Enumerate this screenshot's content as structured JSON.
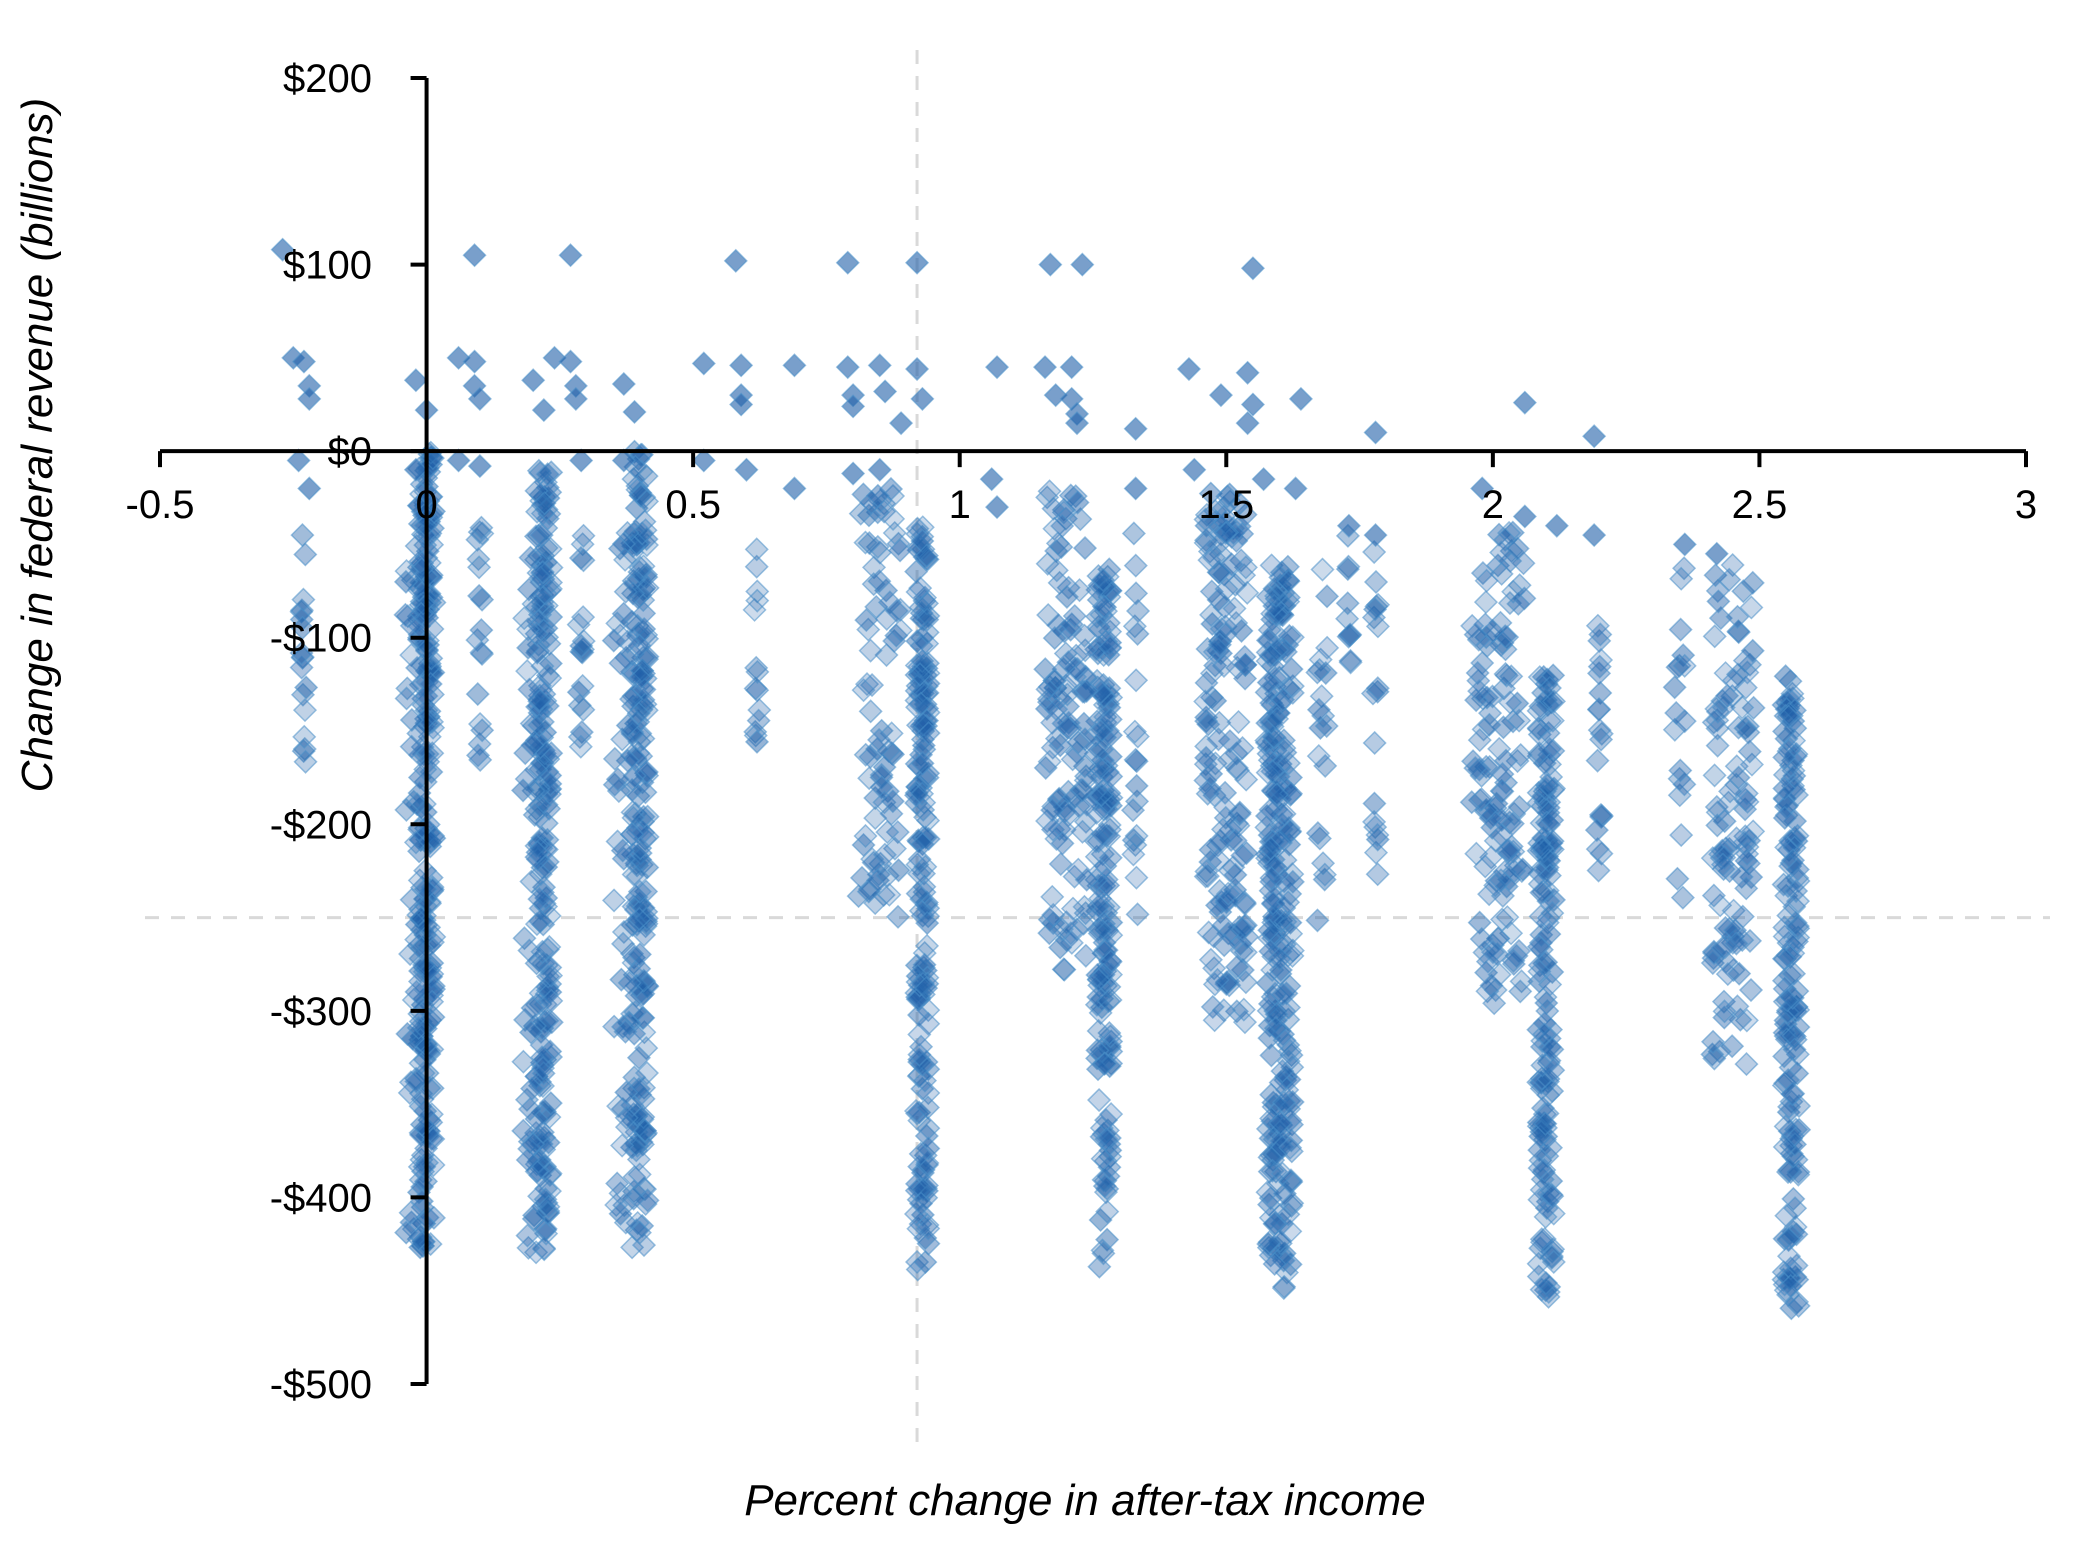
{
  "chart_data": {
    "type": "scatter",
    "xlabel": "Percent change in after-tax income",
    "ylabel": "Change in federal revenue (billions)",
    "xlim": [
      -0.5,
      3
    ],
    "ylim": [
      -500,
      200
    ],
    "x_ticks": [
      -0.5,
      0,
      0.5,
      1,
      1.5,
      2,
      2.5,
      3
    ],
    "x_tick_labels": [
      "-0.5",
      "0",
      "0.5",
      "1",
      "1.5",
      "2",
      "2.5",
      "3"
    ],
    "y_ticks": [
      200,
      100,
      0,
      -100,
      -200,
      -300,
      -400,
      -500
    ],
    "y_tick_labels": [
      "$200",
      "$100",
      "$0",
      "-$100",
      "-$200",
      "-$300",
      "-$400",
      "-$500"
    ],
    "grid": false,
    "legend": "none",
    "reference_lines": {
      "x": 0.92,
      "y": -250
    },
    "marker": "diamond",
    "colors": {
      "marker_fill": "#1f5fa8",
      "marker_stroke": "#4a90c8",
      "axis": "#000000",
      "reference_line": "#d9d9d9"
    },
    "series": [
      {
        "points": [
          [
            -0.27,
            108
          ],
          [
            0.09,
            105
          ],
          [
            0.27,
            105
          ],
          [
            0.58,
            102
          ],
          [
            0.79,
            101
          ],
          [
            0.92,
            101
          ],
          [
            1.17,
            100
          ],
          [
            1.23,
            100
          ],
          [
            1.55,
            98
          ],
          [
            -0.25,
            50
          ],
          [
            -0.23,
            48
          ],
          [
            -0.22,
            35
          ],
          [
            -0.22,
            28
          ],
          [
            -0.02,
            38
          ],
          [
            0,
            22
          ],
          [
            0.06,
            50
          ],
          [
            0.09,
            48
          ],
          [
            0.09,
            35
          ],
          [
            0.1,
            28
          ],
          [
            0.2,
            38
          ],
          [
            0.22,
            22
          ],
          [
            0.24,
            50
          ],
          [
            0.27,
            48
          ],
          [
            0.28,
            35
          ],
          [
            0.28,
            28
          ],
          [
            0.37,
            36
          ],
          [
            0.39,
            21
          ],
          [
            0.52,
            47
          ],
          [
            0.59,
            46
          ],
          [
            0.59,
            30
          ],
          [
            0.59,
            25
          ],
          [
            0.69,
            46
          ],
          [
            0.79,
            45
          ],
          [
            0.8,
            30
          ],
          [
            0.8,
            24
          ],
          [
            0.85,
            46
          ],
          [
            0.86,
            32
          ],
          [
            0.89,
            15
          ],
          [
            0.92,
            44
          ],
          [
            0.93,
            28
          ],
          [
            1.07,
            45
          ],
          [
            1.16,
            45
          ],
          [
            1.18,
            30
          ],
          [
            1.21,
            45
          ],
          [
            1.21,
            28
          ],
          [
            1.22,
            20
          ],
          [
            1.22,
            15
          ],
          [
            1.43,
            44
          ],
          [
            1.49,
            30
          ],
          [
            1.54,
            42
          ],
          [
            1.55,
            25
          ],
          [
            1.54,
            15
          ],
          [
            1.64,
            28
          ],
          [
            1.78,
            10
          ],
          [
            2.06,
            26
          ],
          [
            2.19,
            8
          ],
          [
            1.33,
            12
          ],
          [
            -0.24,
            -5
          ],
          [
            -0.22,
            -20
          ],
          [
            -0.02,
            -10
          ],
          [
            0.06,
            -5
          ],
          [
            0.1,
            -8
          ],
          [
            0.29,
            -5
          ],
          [
            0.37,
            -5
          ],
          [
            0.52,
            -5
          ],
          [
            0.6,
            -10
          ],
          [
            0.69,
            -20
          ],
          [
            0.8,
            -12
          ],
          [
            0.85,
            -10
          ],
          [
            1.06,
            -15
          ],
          [
            1.07,
            -30
          ],
          [
            1.33,
            -20
          ],
          [
            1.44,
            -10
          ],
          [
            1.57,
            -15
          ],
          [
            1.63,
            -20
          ],
          [
            1.73,
            -40
          ],
          [
            1.78,
            -45
          ],
          [
            1.98,
            -20
          ],
          [
            2.06,
            -35
          ],
          [
            2.12,
            -40
          ],
          [
            2.19,
            -45
          ],
          [
            2.36,
            -50
          ],
          [
            2.42,
            -55
          ]
        ]
      }
    ],
    "clusters": [
      {
        "x": 0.0,
        "y_min": -430,
        "y_max": 0,
        "count": 240,
        "spread": 0.015
      },
      {
        "x": 0.22,
        "y_min": -430,
        "y_max": 0,
        "count": 200,
        "spread": 0.015
      },
      {
        "x": 0.4,
        "y_min": -430,
        "y_max": 0,
        "count": 200,
        "spread": 0.015
      },
      {
        "x": 0.93,
        "y_min": -440,
        "y_max": -40,
        "count": 180,
        "spread": 0.012
      },
      {
        "x": 1.27,
        "y_min": -440,
        "y_max": -60,
        "count": 180,
        "spread": 0.015
      },
      {
        "x": 1.6,
        "y_min": -450,
        "y_max": -60,
        "count": 260,
        "spread": 0.025
      },
      {
        "x": 2.1,
        "y_min": -455,
        "y_max": -120,
        "count": 160,
        "spread": 0.015
      },
      {
        "x": 2.56,
        "y_min": -460,
        "y_max": -120,
        "count": 160,
        "spread": 0.015
      },
      {
        "x": -0.02,
        "y_min": -430,
        "y_max": -30,
        "count": 60,
        "spread": 0.02
      },
      {
        "x": 0.2,
        "y_min": -430,
        "y_max": -40,
        "count": 50,
        "spread": 0.02
      },
      {
        "x": 0.37,
        "y_min": -420,
        "y_max": -40,
        "count": 50,
        "spread": 0.02
      },
      {
        "x": 0.85,
        "y_min": -250,
        "y_max": -20,
        "count": 80,
        "spread": 0.04
      },
      {
        "x": 1.2,
        "y_min": -280,
        "y_max": -20,
        "count": 120,
        "spread": 0.04
      },
      {
        "x": 1.5,
        "y_min": -310,
        "y_max": -20,
        "count": 160,
        "spread": 0.04
      },
      {
        "x": 2.02,
        "y_min": -300,
        "y_max": -40,
        "count": 110,
        "spread": 0.04
      },
      {
        "x": 2.45,
        "y_min": -330,
        "y_max": -60,
        "count": 110,
        "spread": 0.04
      },
      {
        "x": -0.23,
        "y_min": -170,
        "y_max": -40,
        "count": 18,
        "spread": 0.005
      },
      {
        "x": 0.1,
        "y_min": -170,
        "y_max": -40,
        "count": 18,
        "spread": 0.005
      },
      {
        "x": 0.29,
        "y_min": -170,
        "y_max": -40,
        "count": 18,
        "spread": 0.005
      },
      {
        "x": 0.62,
        "y_min": -170,
        "y_max": -50,
        "count": 14,
        "spread": 0.005
      },
      {
        "x": 1.33,
        "y_min": -250,
        "y_max": -40,
        "count": 20,
        "spread": 0.005
      },
      {
        "x": 1.73,
        "y_min": -120,
        "y_max": -30,
        "count": 10,
        "spread": 0.005
      },
      {
        "x": 1.78,
        "y_min": -250,
        "y_max": -50,
        "count": 18,
        "spread": 0.005
      },
      {
        "x": 1.97,
        "y_min": -270,
        "y_max": -60,
        "count": 18,
        "spread": 0.01
      },
      {
        "x": 2.2,
        "y_min": -250,
        "y_max": -50,
        "count": 20,
        "spread": 0.005
      },
      {
        "x": 2.35,
        "y_min": -270,
        "y_max": -60,
        "count": 18,
        "spread": 0.01
      },
      {
        "x": 1.68,
        "y_min": -260,
        "y_max": -60,
        "count": 20,
        "spread": 0.01
      }
    ]
  }
}
